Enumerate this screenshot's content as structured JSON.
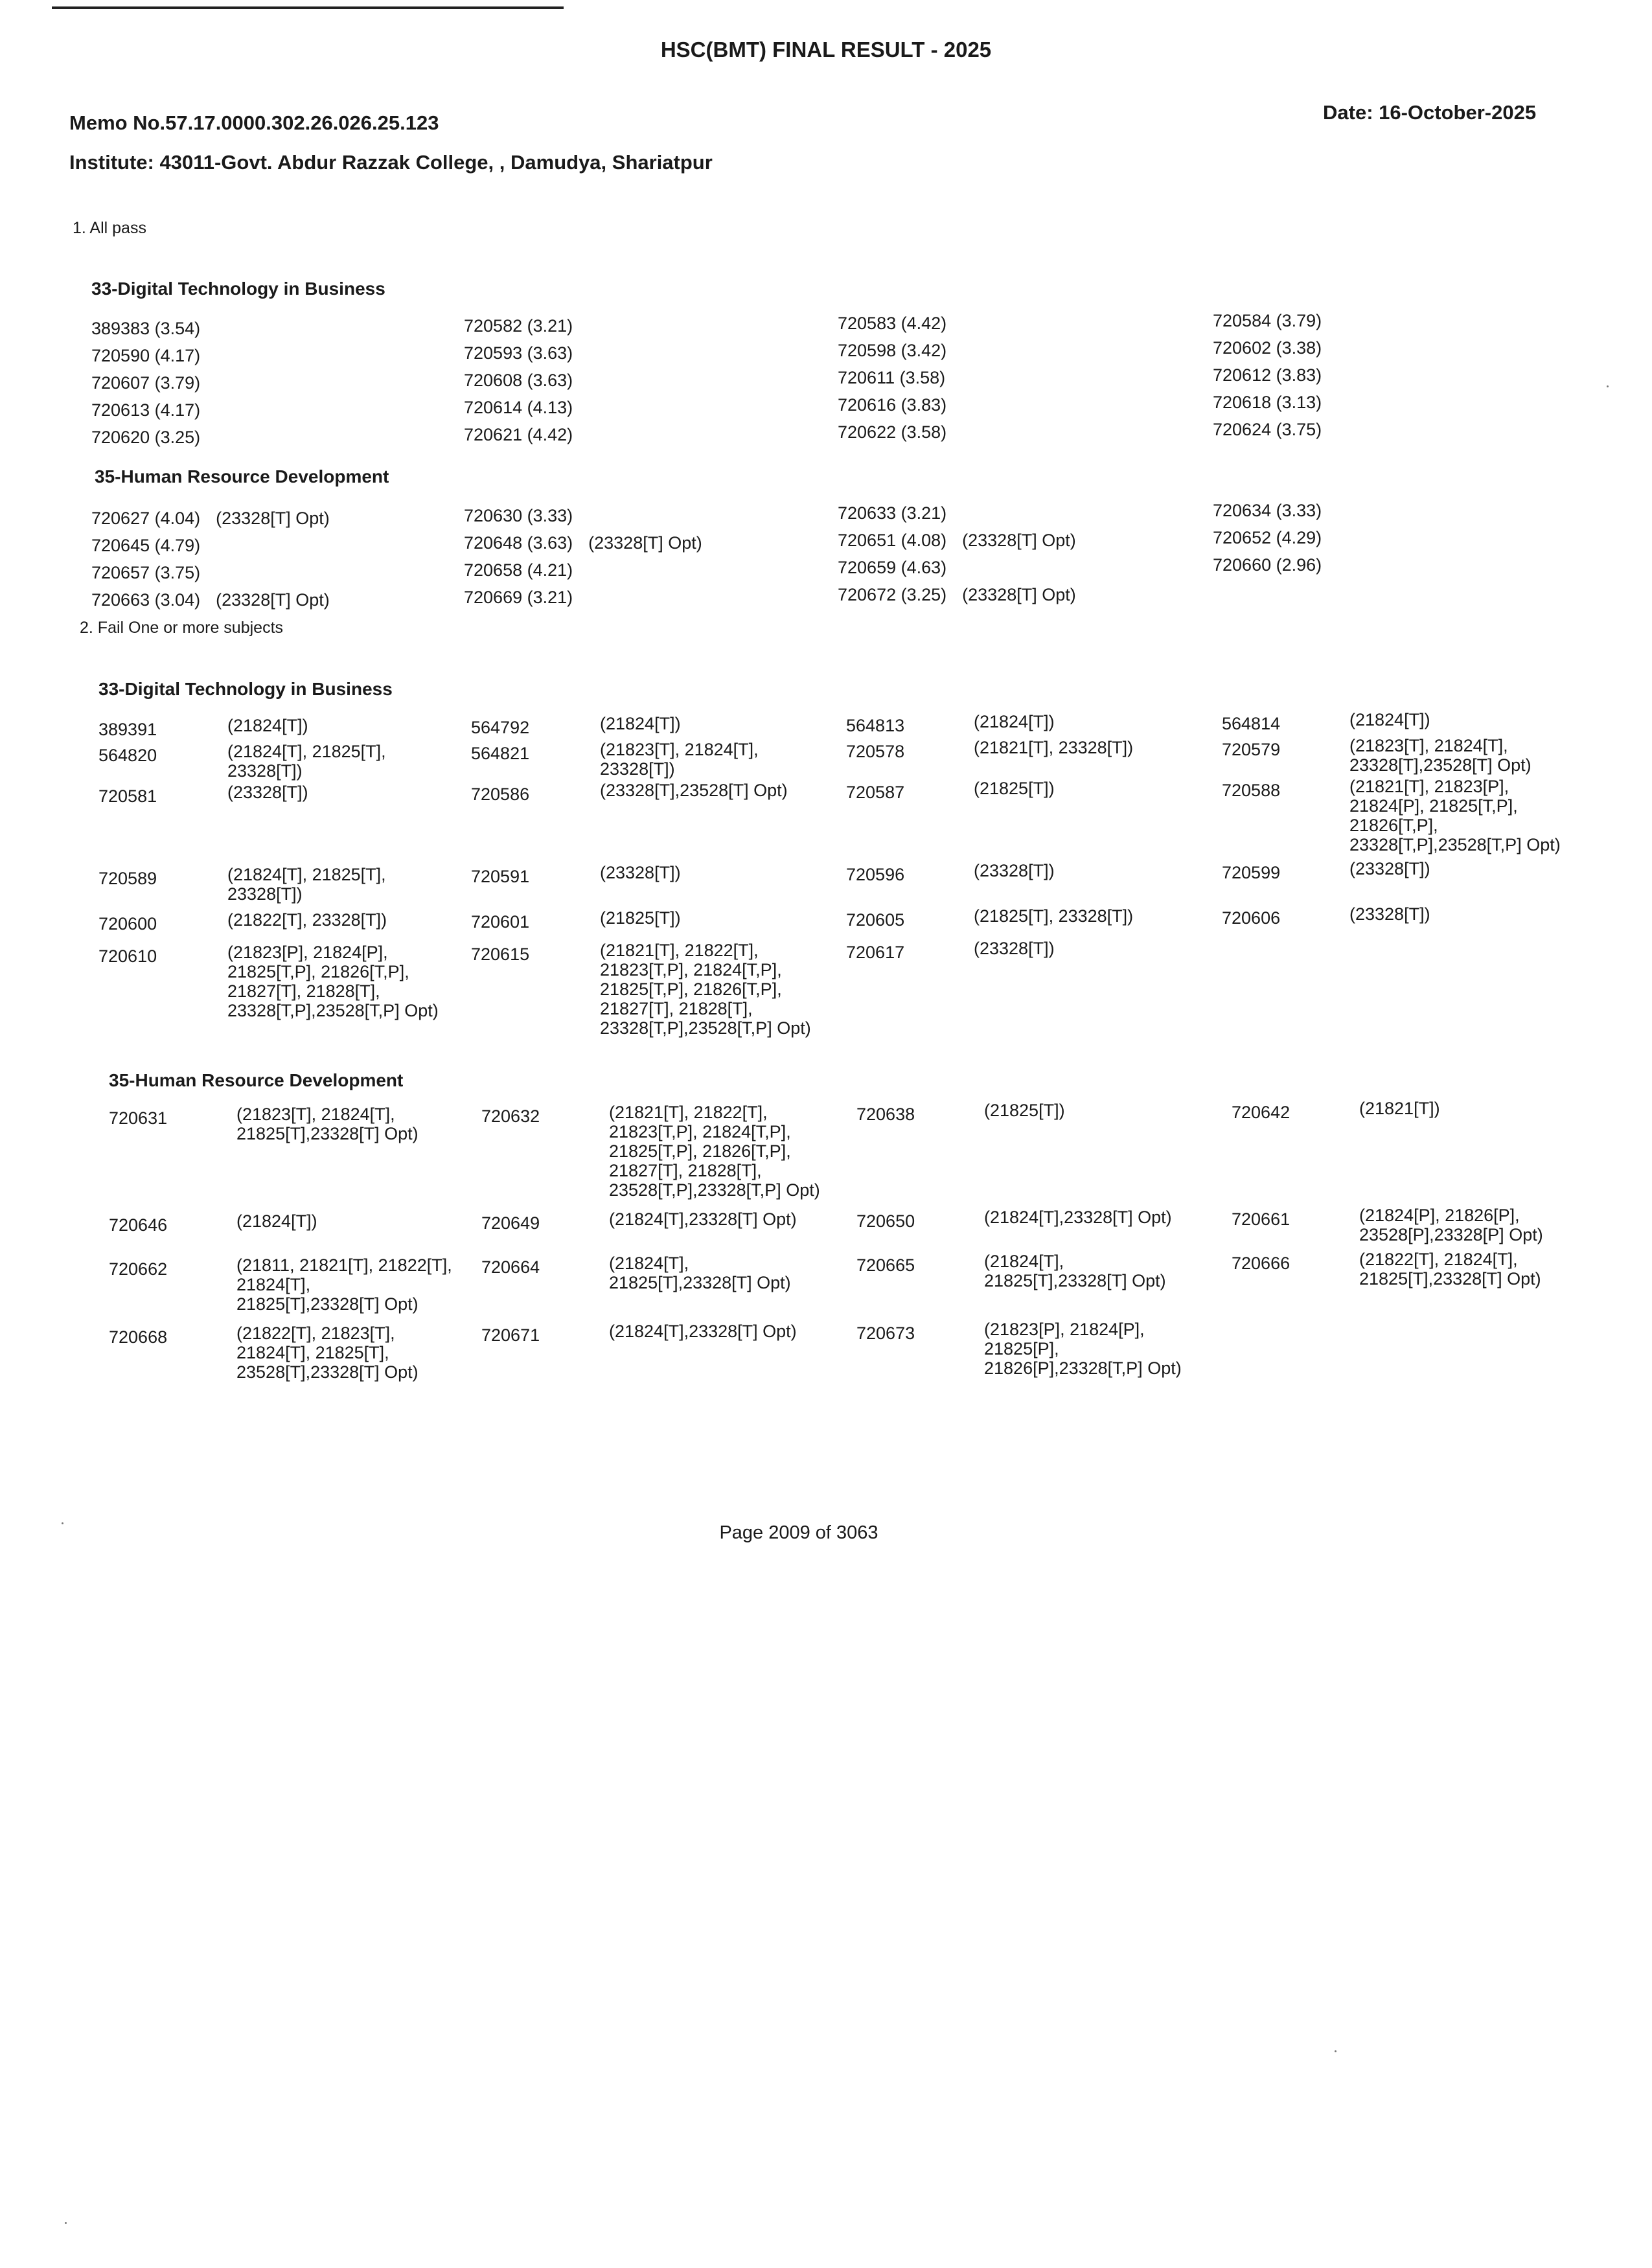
{
  "header": {
    "title": "HSC(BMT) FINAL RESULT - 2025",
    "memo": "Memo No.57.17.0000.302.26.026.25.123",
    "date": "Date: 16-October-2025",
    "institute": "Institute: 43011-Govt. Abdur Razzak College, , Damudya, Shariatpur"
  },
  "pass": {
    "label": "1. All pass",
    "sections": [
      {
        "title": "33-Digital Technology in Business",
        "rows": [
          [
            {
              "v": "389383 (3.54)"
            },
            {
              "v": "720582 (3.21)"
            },
            {
              "v": "720583 (4.42)"
            },
            {
              "v": "720584 (3.79)"
            }
          ],
          [
            {
              "v": "720590 (4.17)"
            },
            {
              "v": "720593 (3.63)"
            },
            {
              "v": "720598 (3.42)"
            },
            {
              "v": "720602 (3.38)"
            }
          ],
          [
            {
              "v": "720607 (3.79)"
            },
            {
              "v": "720608 (3.63)"
            },
            {
              "v": "720611 (3.58)"
            },
            {
              "v": "720612 (3.83)"
            }
          ],
          [
            {
              "v": "720613 (4.17)"
            },
            {
              "v": "720614 (4.13)"
            },
            {
              "v": "720616 (3.83)"
            },
            {
              "v": "720618 (3.13)"
            }
          ],
          [
            {
              "v": "720620 (3.25)"
            },
            {
              "v": "720621 (4.42)"
            },
            {
              "v": "720622 (3.58)"
            },
            {
              "v": "720624 (3.75)"
            }
          ]
        ]
      },
      {
        "title": "35-Human Resource Development",
        "rows": [
          [
            {
              "v": "720627 (4.04)",
              "opt": "(23328[T] Opt)"
            },
            {
              "v": "720630 (3.33)"
            },
            {
              "v": "720633 (3.21)"
            },
            {
              "v": "720634 (3.33)"
            }
          ],
          [
            {
              "v": "720645 (4.79)"
            },
            {
              "v": "720648 (3.63)",
              "opt": "(23328[T] Opt)"
            },
            {
              "v": "720651 (4.08)",
              "opt": "(23328[T] Opt)"
            },
            {
              "v": "720652 (4.29)"
            }
          ],
          [
            {
              "v": "720657 (3.75)"
            },
            {
              "v": "720658 (4.21)"
            },
            {
              "v": "720659 (4.63)"
            },
            {
              "v": "720660 (2.96)"
            }
          ],
          [
            {
              "v": "720663 (3.04)",
              "opt": "(23328[T] Opt)"
            },
            {
              "v": "720669 (3.21)"
            },
            {
              "v": "720672 (3.25)",
              "opt": "(23328[T] Opt)"
            }
          ]
        ]
      }
    ]
  },
  "fail": {
    "label": "2. Fail One or more subjects",
    "sections": [
      {
        "title": "33-Digital Technology in Business",
        "rows": [
          [
            {
              "id": "389391",
              "s": "(21824[T])"
            },
            {
              "id": "564792",
              "s": "(21824[T])"
            },
            {
              "id": "564813",
              "s": "(21824[T])"
            },
            {
              "id": "564814",
              "s": "(21824[T])"
            }
          ],
          [
            {
              "id": "564820",
              "s": "(21824[T], 21825[T],\n23328[T])"
            },
            {
              "id": "564821",
              "s": "(21823[T], 21824[T],\n23328[T])"
            },
            {
              "id": "720578",
              "s": "(21821[T], 23328[T])"
            },
            {
              "id": "720579",
              "s": "(21823[T], 21824[T],\n23328[T],23528[T] Opt)"
            }
          ],
          [
            {
              "id": "720581",
              "s": "(23328[T])"
            },
            {
              "id": "720586",
              "s": "(23328[T],23528[T] Opt)"
            },
            {
              "id": "720587",
              "s": "(21825[T])"
            },
            {
              "id": "720588",
              "s": "(21821[T], 21823[P],\n21824[P], 21825[T,P],\n21826[T,P],\n23328[T,P],23528[T,P] Opt)"
            }
          ],
          [
            {
              "id": "720589",
              "s": "(21824[T], 21825[T],\n23328[T])"
            },
            {
              "id": "720591",
              "s": "(23328[T])"
            },
            {
              "id": "720596",
              "s": "(23328[T])"
            },
            {
              "id": "720599",
              "s": "(23328[T])"
            }
          ],
          [
            {
              "id": "720600",
              "s": "(21822[T], 23328[T])"
            },
            {
              "id": "720601",
              "s": "(21825[T])"
            },
            {
              "id": "720605",
              "s": "(21825[T], 23328[T])"
            },
            {
              "id": "720606",
              "s": "(23328[T])"
            }
          ],
          [
            {
              "id": "720610",
              "s": "(21823[P], 21824[P],\n21825[T,P], 21826[T,P],\n21827[T], 21828[T],\n23328[T,P],23528[T,P] Opt)"
            },
            {
              "id": "720615",
              "s": "(21821[T], 21822[T],\n21823[T,P], 21824[T,P],\n21825[T,P], 21826[T,P],\n21827[T], 21828[T],\n23328[T,P],23528[T,P] Opt)"
            },
            {
              "id": "720617",
              "s": "(23328[T])"
            }
          ]
        ]
      },
      {
        "title": "35-Human Resource Development",
        "rows": [
          [
            {
              "id": "720631",
              "s": "(21823[T], 21824[T],\n21825[T],23328[T] Opt)"
            },
            {
              "id": "720632",
              "s": "(21821[T], 21822[T],\n21823[T,P], 21824[T,P],\n21825[T,P], 21826[T,P],\n21827[T], 21828[T],\n23528[T,P],23328[T,P] Opt)"
            },
            {
              "id": "720638",
              "s": "(21825[T])"
            },
            {
              "id": "720642",
              "s": "(21821[T])"
            }
          ],
          [
            {
              "id": "720646",
              "s": "(21824[T])"
            },
            {
              "id": "720649",
              "s": "(21824[T],23328[T] Opt)"
            },
            {
              "id": "720650",
              "s": "(21824[T],23328[T] Opt)"
            },
            {
              "id": "720661",
              "s": "(21824[P], 21826[P],\n23528[P],23328[P] Opt)"
            }
          ],
          [
            {
              "id": "720662",
              "s": "(21811, 21821[T], 21822[T],\n21824[T],\n21825[T],23328[T] Opt)"
            },
            {
              "id": "720664",
              "s": "(21824[T],\n21825[T],23328[T] Opt)"
            },
            {
              "id": "720665",
              "s": "(21824[T],\n21825[T],23328[T] Opt)"
            },
            {
              "id": "720666",
              "s": "(21822[T], 21824[T],\n21825[T],23328[T] Opt)"
            }
          ],
          [
            {
              "id": "720668",
              "s": "(21822[T], 21823[T],\n21824[T], 21825[T],\n23528[T],23328[T] Opt)"
            },
            {
              "id": "720671",
              "s": "(21824[T],23328[T] Opt)"
            },
            {
              "id": "720673",
              "s": "(21823[P], 21824[P],\n21825[P],\n21826[P],23328[T,P] Opt)"
            }
          ]
        ]
      }
    ]
  },
  "footer": {
    "page": "Page 2009 of 3063"
  }
}
